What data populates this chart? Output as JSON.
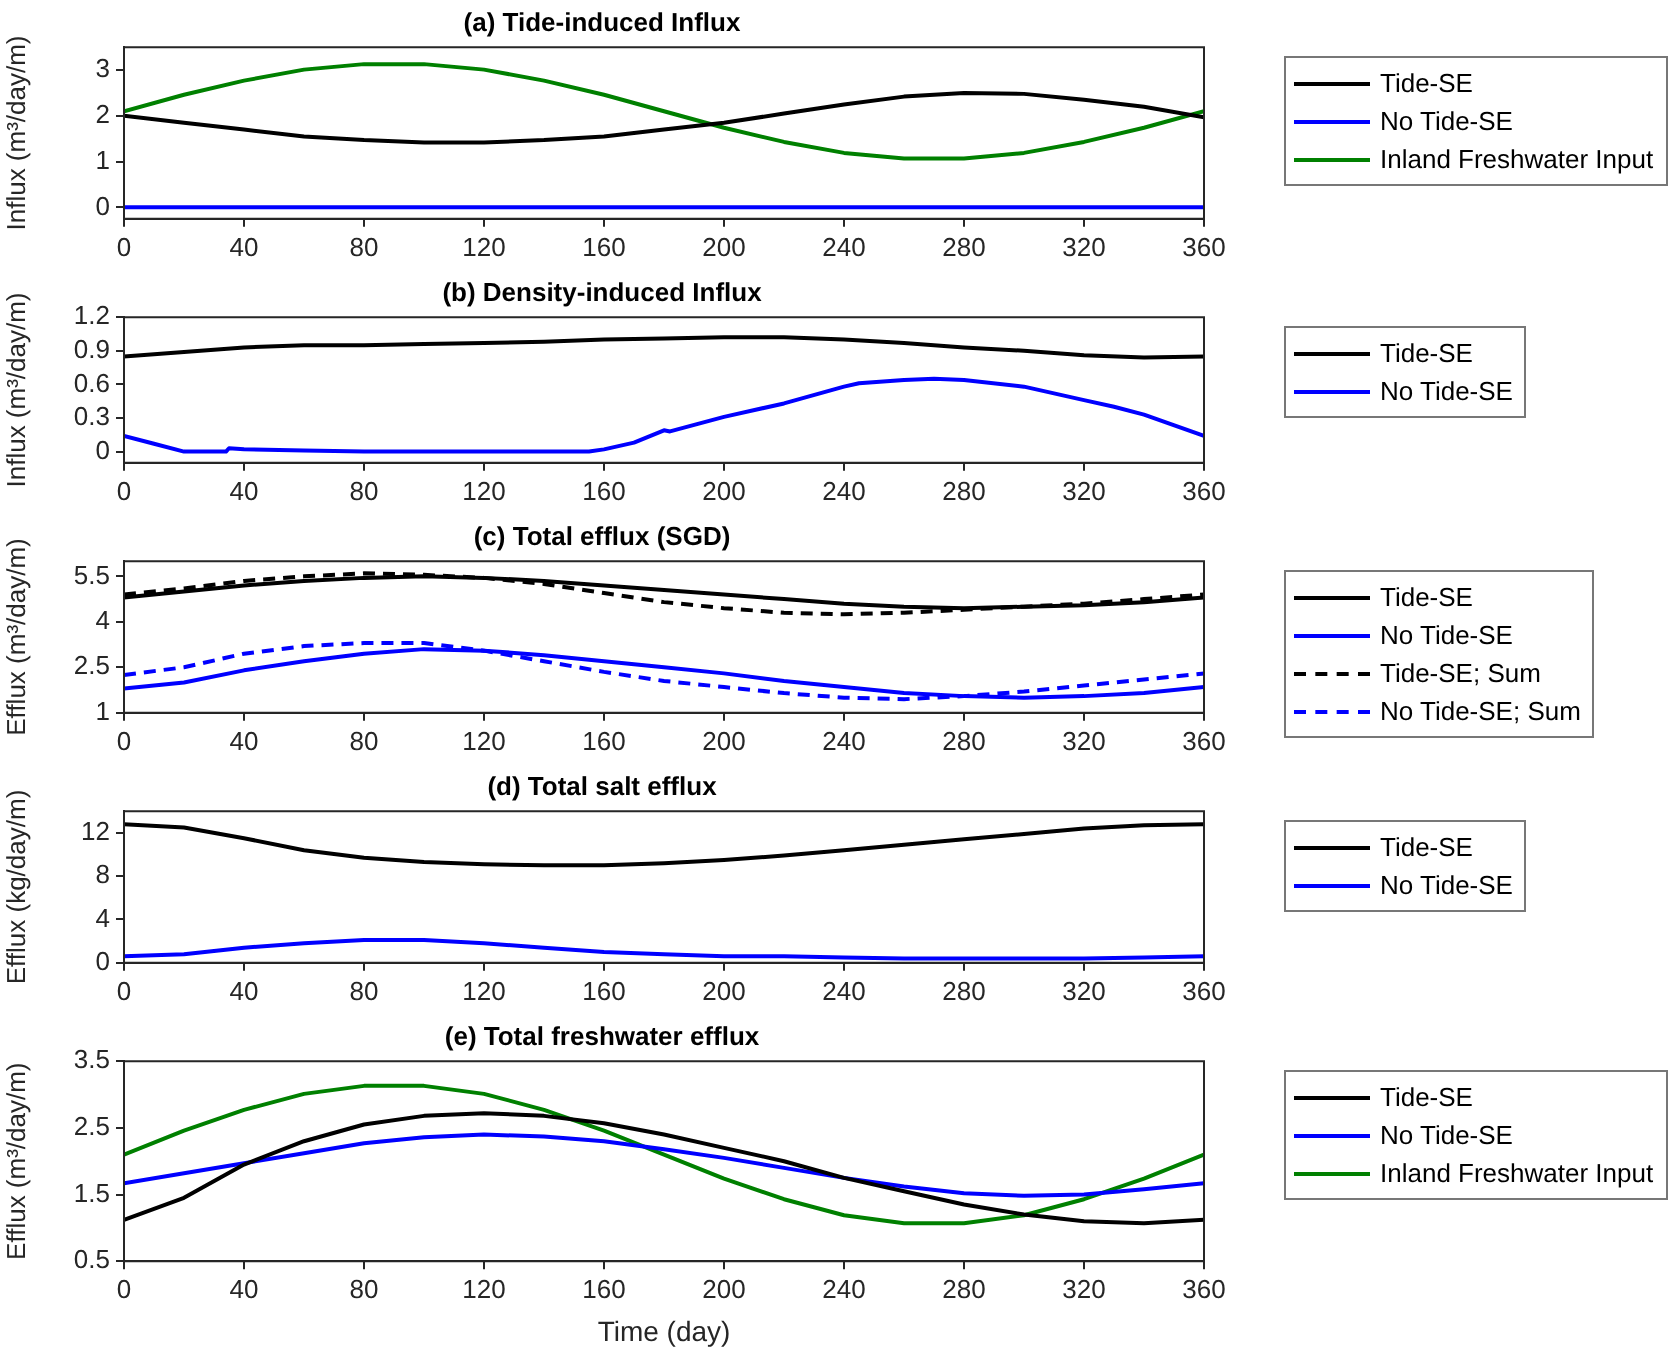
{
  "chart_data": [
    {
      "type": "line",
      "title": "(a) Tide-induced Influx",
      "ylabel": "Influx (m³/day/m)",
      "x": [
        0,
        20,
        40,
        60,
        80,
        100,
        120,
        140,
        160,
        180,
        200,
        220,
        240,
        260,
        280,
        300,
        320,
        340,
        360
      ],
      "xlim": [
        0,
        360
      ],
      "xticks": [
        0,
        40,
        80,
        120,
        160,
        200,
        240,
        280,
        320,
        360
      ],
      "ylim": [
        -0.25,
        3.5
      ],
      "yticks": [
        0,
        1,
        2,
        3
      ],
      "grid": false,
      "legend": "right",
      "marker": "none",
      "line_style": "solid",
      "series": [
        {
          "name": "Tide-SE",
          "color": "#000000",
          "values": [
            2.0,
            1.85,
            1.7,
            1.55,
            1.47,
            1.42,
            1.42,
            1.47,
            1.55,
            1.7,
            1.85,
            2.05,
            2.25,
            2.42,
            2.5,
            2.48,
            2.35,
            2.2,
            1.97
          ]
        },
        {
          "name": "No Tide-SE",
          "color": "#0000ff",
          "values": [
            0,
            0,
            0,
            0,
            0,
            0,
            0,
            0,
            0,
            0,
            0,
            0,
            0,
            0,
            0,
            0,
            0,
            0,
            0
          ]
        },
        {
          "name": "Inland Freshwater Input",
          "color": "#008000",
          "values": [
            2.1,
            2.46,
            2.77,
            3.01,
            3.13,
            3.13,
            3.01,
            2.77,
            2.46,
            2.1,
            1.74,
            1.43,
            1.19,
            1.07,
            1.07,
            1.19,
            1.43,
            1.74,
            2.1
          ]
        }
      ]
    },
    {
      "type": "line",
      "title": "(b) Density-induced Influx",
      "ylabel": "Influx (m³/day/m)",
      "x": [
        0,
        20,
        40,
        60,
        80,
        100,
        120,
        140,
        160,
        180,
        200,
        220,
        240,
        260,
        280,
        300,
        320,
        340,
        360
      ],
      "xlim": [
        0,
        360
      ],
      "xticks": [
        0,
        40,
        80,
        120,
        160,
        200,
        240,
        280,
        320,
        360
      ],
      "ylim": [
        -0.1,
        1.2
      ],
      "yticks": [
        0,
        0.3,
        0.6,
        0.9,
        1.2
      ],
      "grid": false,
      "legend": "right",
      "marker": "none",
      "line_style": "solid",
      "series": [
        {
          "name": "Tide-SE",
          "color": "#000000",
          "values": [
            0.85,
            0.89,
            0.93,
            0.95,
            0.95,
            0.96,
            0.97,
            0.98,
            1.0,
            1.01,
            1.02,
            1.02,
            1.0,
            0.97,
            0.93,
            0.9,
            0.86,
            0.84,
            0.85
          ]
        },
        {
          "name": "No Tide-SE",
          "color": "#0000ff",
          "x": [
            0,
            10,
            20,
            34,
            35,
            40,
            60,
            80,
            100,
            120,
            140,
            155,
            160,
            170,
            180,
            182,
            200,
            220,
            240,
            245,
            260,
            270,
            280,
            300,
            320,
            330,
            340,
            360
          ],
          "values": [
            0.14,
            0.07,
            0.0,
            0.0,
            0.03,
            0.02,
            0.01,
            0,
            0,
            0,
            0,
            0,
            0.02,
            0.08,
            0.19,
            0.18,
            0.31,
            0.43,
            0.58,
            0.61,
            0.64,
            0.65,
            0.64,
            0.58,
            0.46,
            0.4,
            0.33,
            0.14
          ]
        }
      ]
    },
    {
      "type": "line",
      "title": "(c) Total efflux (SGD)",
      "ylabel": "Efflux (m³/day/m)",
      "x": [
        0,
        20,
        40,
        60,
        80,
        100,
        120,
        140,
        160,
        180,
        200,
        220,
        240,
        260,
        280,
        300,
        320,
        340,
        360
      ],
      "xlim": [
        0,
        360
      ],
      "xticks": [
        0,
        40,
        80,
        120,
        160,
        200,
        240,
        280,
        320,
        360
      ],
      "ylim": [
        1,
        6
      ],
      "yticks": [
        1,
        2.5,
        4,
        5.5
      ],
      "grid": false,
      "legend": "right",
      "marker": "none",
      "line_style": "solid",
      "series": [
        {
          "name": "Tide-SE",
          "color": "#000000",
          "values": [
            4.8,
            5.0,
            5.2,
            5.35,
            5.45,
            5.5,
            5.45,
            5.35,
            5.2,
            5.05,
            4.9,
            4.75,
            4.6,
            4.5,
            4.45,
            4.5,
            4.55,
            4.65,
            4.8
          ]
        },
        {
          "name": "No Tide-SE",
          "color": "#0000ff",
          "values": [
            1.8,
            2.0,
            2.4,
            2.7,
            2.95,
            3.1,
            3.05,
            2.9,
            2.7,
            2.5,
            2.3,
            2.05,
            1.85,
            1.65,
            1.55,
            1.5,
            1.55,
            1.65,
            1.85
          ]
        },
        {
          "name": "Tide-SE; Sum",
          "color": "#000000",
          "line_style": "dashed",
          "values": [
            4.9,
            5.1,
            5.35,
            5.5,
            5.6,
            5.55,
            5.45,
            5.25,
            4.95,
            4.65,
            4.45,
            4.3,
            4.25,
            4.3,
            4.4,
            4.5,
            4.6,
            4.75,
            4.9
          ]
        },
        {
          "name": "No Tide-SE; Sum",
          "color": "#0000ff",
          "line_style": "dashed",
          "values": [
            2.25,
            2.5,
            2.95,
            3.2,
            3.3,
            3.3,
            3.05,
            2.7,
            2.35,
            2.05,
            1.85,
            1.65,
            1.5,
            1.45,
            1.55,
            1.7,
            1.9,
            2.1,
            2.3
          ]
        }
      ]
    },
    {
      "type": "line",
      "title": "(d) Total salt efflux",
      "ylabel": "Efflux (kg/day/m)",
      "x": [
        0,
        20,
        40,
        60,
        80,
        100,
        120,
        140,
        160,
        180,
        200,
        220,
        240,
        260,
        280,
        300,
        320,
        340,
        360
      ],
      "xlim": [
        0,
        360
      ],
      "xticks": [
        0,
        40,
        80,
        120,
        160,
        200,
        240,
        280,
        320,
        360
      ],
      "ylim": [
        0,
        14
      ],
      "yticks": [
        0,
        4,
        8,
        12
      ],
      "grid": false,
      "legend": "right",
      "marker": "none",
      "line_style": "solid",
      "series": [
        {
          "name": "Tide-SE",
          "color": "#000000",
          "values": [
            12.8,
            12.5,
            11.5,
            10.4,
            9.7,
            9.3,
            9.1,
            9.0,
            9.0,
            9.2,
            9.5,
            9.9,
            10.4,
            10.9,
            11.4,
            11.9,
            12.4,
            12.7,
            12.8
          ]
        },
        {
          "name": "No Tide-SE",
          "color": "#0000ff",
          "values": [
            0.6,
            0.8,
            1.4,
            1.8,
            2.1,
            2.1,
            1.8,
            1.4,
            1.0,
            0.8,
            0.6,
            0.6,
            0.5,
            0.4,
            0.4,
            0.4,
            0.4,
            0.5,
            0.6
          ]
        }
      ]
    },
    {
      "type": "line",
      "title": "(e) Total freshwater efflux",
      "xlabel": "Time (day)",
      "ylabel": "Efflux (m³/day/m)",
      "x": [
        0,
        20,
        40,
        60,
        80,
        100,
        120,
        140,
        160,
        180,
        200,
        220,
        240,
        260,
        280,
        300,
        320,
        340,
        360
      ],
      "xlim": [
        0,
        360
      ],
      "xticks": [
        0,
        40,
        80,
        120,
        160,
        200,
        240,
        280,
        320,
        360
      ],
      "ylim": [
        0.5,
        3.5
      ],
      "yticks": [
        0.5,
        1.5,
        2.5,
        3.5
      ],
      "grid": false,
      "legend": "right",
      "marker": "none",
      "line_style": "solid",
      "series": [
        {
          "name": "Tide-SE",
          "color": "#000000",
          "values": [
            1.12,
            1.45,
            1.95,
            2.3,
            2.55,
            2.68,
            2.72,
            2.68,
            2.57,
            2.4,
            2.2,
            2.0,
            1.75,
            1.55,
            1.35,
            1.2,
            1.1,
            1.07,
            1.12
          ]
        },
        {
          "name": "No Tide-SE",
          "color": "#0000ff",
          "values": [
            1.67,
            1.82,
            1.97,
            2.12,
            2.27,
            2.36,
            2.4,
            2.37,
            2.3,
            2.18,
            2.05,
            1.9,
            1.75,
            1.62,
            1.52,
            1.48,
            1.5,
            1.58,
            1.67
          ]
        },
        {
          "name": "Inland Freshwater Input",
          "color": "#008000",
          "values": [
            2.1,
            2.46,
            2.77,
            3.01,
            3.13,
            3.13,
            3.01,
            2.77,
            2.46,
            2.1,
            1.74,
            1.43,
            1.19,
            1.07,
            1.07,
            1.19,
            1.43,
            1.74,
            2.1
          ]
        }
      ]
    }
  ]
}
